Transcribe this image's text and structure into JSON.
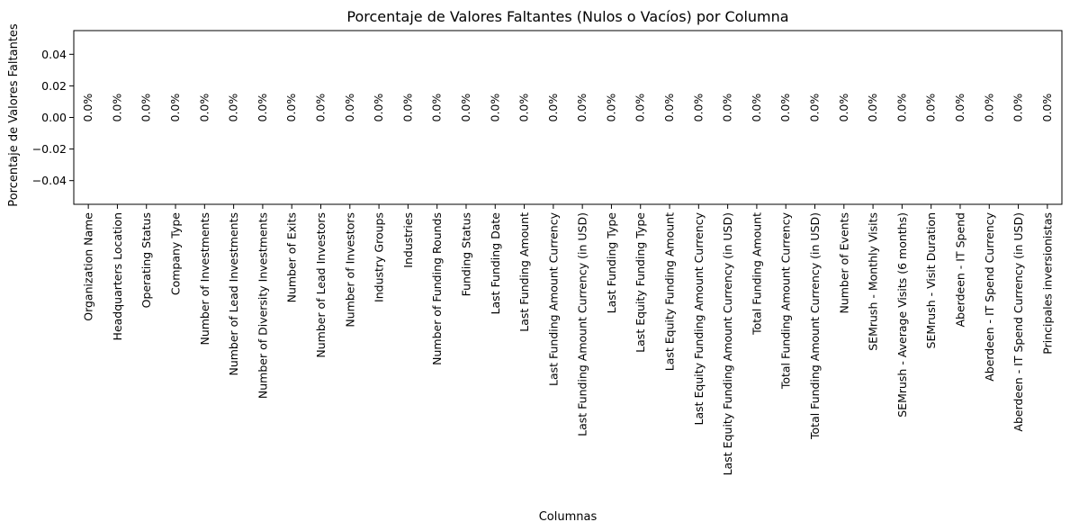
{
  "chart_data": {
    "type": "bar",
    "title": "Porcentaje de Valores Faltantes (Nulos o Vacíos) por Columna",
    "xlabel": "Columnas",
    "ylabel": "Porcentaje de Valores Faltantes",
    "ylim": [
      -0.055,
      0.055
    ],
    "yticks": [
      "0.04",
      "0.02",
      "0.00",
      "−0.02",
      "−0.04"
    ],
    "ytick_values": [
      0.04,
      0.02,
      0.0,
      -0.02,
      -0.04
    ],
    "grid": false,
    "categories": [
      "Organization Name",
      "Headquarters Location",
      "Operating Status",
      "Company Type",
      "Number of Investments",
      "Number of Lead Investments",
      "Number of Diversity Investments",
      "Number of Exits",
      "Number of Lead Investors",
      "Number of Investors",
      "Industry Groups",
      "Industries",
      "Number of Funding Rounds",
      "Funding Status",
      "Last Funding Date",
      "Last Funding Amount",
      "Last Funding Amount Currency",
      "Last Funding Amount Currency (in USD)",
      "Last Funding Type",
      "Last Equity Funding Type",
      "Last Equity Funding Amount",
      "Last Equity Funding Amount Currency",
      "Last Equity Funding Amount Currency (in USD)",
      "Total Funding Amount",
      "Total Funding Amount Currency",
      "Total Funding Amount Currency (in USD)",
      "Number of Events",
      "SEMrush - Monthly Visits",
      "SEMrush - Average Visits (6 months)",
      "SEMrush - Visit Duration",
      "Aberdeen - IT Spend",
      "Aberdeen - IT Spend Currency",
      "Aberdeen - IT Spend Currency (in USD)",
      "Principales inversionistas"
    ],
    "values": [
      0,
      0,
      0,
      0,
      0,
      0,
      0,
      0,
      0,
      0,
      0,
      0,
      0,
      0,
      0,
      0,
      0,
      0,
      0,
      0,
      0,
      0,
      0,
      0,
      0,
      0,
      0,
      0,
      0,
      0,
      0,
      0,
      0,
      0
    ],
    "data_labels": [
      "0.0%",
      "0.0%",
      "0.0%",
      "0.0%",
      "0.0%",
      "0.0%",
      "0.0%",
      "0.0%",
      "0.0%",
      "0.0%",
      "0.0%",
      "0.0%",
      "0.0%",
      "0.0%",
      "0.0%",
      "0.0%",
      "0.0%",
      "0.0%",
      "0.0%",
      "0.0%",
      "0.0%",
      "0.0%",
      "0.0%",
      "0.0%",
      "0.0%",
      "0.0%",
      "0.0%",
      "0.0%",
      "0.0%",
      "0.0%",
      "0.0%",
      "0.0%",
      "0.0%",
      "0.0%"
    ],
    "bar_color": "#1f77b4"
  }
}
